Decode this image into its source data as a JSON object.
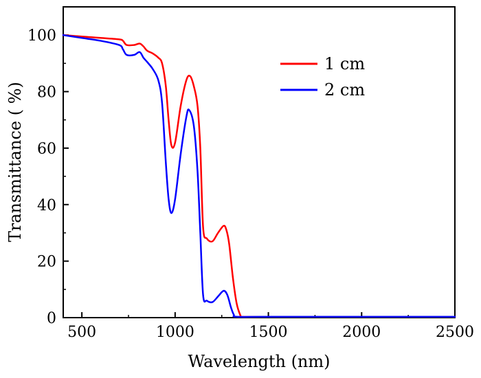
{
  "chart_data": {
    "type": "line",
    "title": "",
    "xlabel": "Wavelength (nm)",
    "ylabel": "Transmittance ( %)",
    "xlim": [
      400,
      2500
    ],
    "ylim": [
      0,
      110
    ],
    "xticks": [
      500,
      1000,
      1500,
      2000,
      2500
    ],
    "yticks": [
      0,
      20,
      40,
      60,
      80,
      100
    ],
    "grid": false,
    "legend": "top-right",
    "series": [
      {
        "name": "1 cm",
        "color": "#ff0000",
        "x": [
          400,
          500,
          600,
          700,
          720,
          740,
          780,
          810,
          830,
          850,
          880,
          910,
          930,
          950,
          965,
          980,
          1000,
          1030,
          1060,
          1080,
          1100,
          1120,
          1135,
          1150,
          1170,
          1200,
          1230,
          1260,
          1275,
          1290,
          1310,
          1330,
          1350,
          1360,
          1500,
          2000,
          2500
        ],
        "y": [
          100,
          99.5,
          99,
          98.5,
          98,
          96.5,
          96.5,
          97,
          96,
          94.5,
          93.5,
          92,
          90,
          82,
          70,
          61,
          62,
          75,
          84,
          85.5,
          82,
          75,
          60,
          32,
          28,
          27,
          30,
          32.5,
          31,
          26,
          14,
          5,
          0.8,
          0.3,
          0.3,
          0.3,
          0.3
        ]
      },
      {
        "name": "2 cm",
        "color": "#0000ff",
        "x": [
          400,
          500,
          600,
          700,
          720,
          740,
          780,
          810,
          830,
          850,
          880,
          910,
          930,
          950,
          965,
          980,
          1000,
          1030,
          1060,
          1075,
          1100,
          1120,
          1135,
          1150,
          1170,
          1200,
          1230,
          1260,
          1280,
          1300,
          1315,
          1330,
          1500,
          2000,
          2500
        ],
        "y": [
          100,
          99,
          98,
          96.5,
          95,
          93,
          93,
          94,
          92,
          90.5,
          88,
          84,
          76,
          55,
          42,
          37,
          42,
          58,
          71,
          73.5,
          68,
          52,
          30,
          8,
          6,
          5.5,
          7.5,
          9.5,
          8,
          3.5,
          1,
          0.3,
          0.3,
          0.3,
          0.3
        ]
      }
    ]
  }
}
